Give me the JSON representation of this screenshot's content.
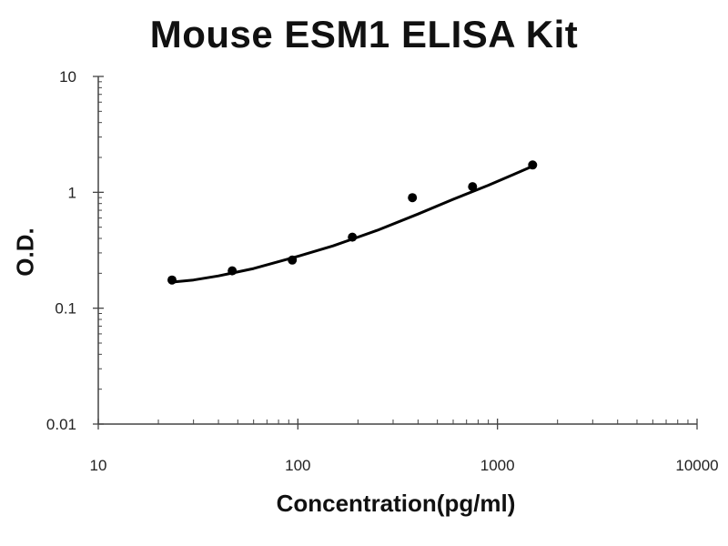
{
  "chart_data": {
    "type": "scatter",
    "title": "Mouse ESM1 ELISA Kit",
    "xlabel": "Concentration(pg/ml)",
    "ylabel": "O.D.",
    "x_scale": "log",
    "y_scale": "log",
    "xlim": [
      10,
      10000
    ],
    "ylim": [
      0.01,
      10
    ],
    "x_ticks": [
      "10",
      "100",
      "1000",
      "10000"
    ],
    "y_ticks": [
      "10",
      "1",
      "0.1",
      "0.01"
    ],
    "grid": false,
    "legend": "none",
    "series": [
      {
        "x": [
          23.4,
          46.9,
          93.8,
          187.5,
          375,
          750,
          1500
        ],
        "y": [
          0.175,
          0.21,
          0.26,
          0.41,
          0.9,
          1.12,
          1.72
        ]
      }
    ],
    "fit_curve": {
      "x": [
        23.4,
        30,
        40,
        60,
        100,
        150,
        250,
        400,
        600,
        900,
        1200,
        1500
      ],
      "y": [
        0.168,
        0.175,
        0.19,
        0.22,
        0.28,
        0.345,
        0.47,
        0.65,
        0.87,
        1.15,
        1.42,
        1.68
      ]
    },
    "colors": {
      "marker": "#000000",
      "line": "#000000",
      "axis": "#444444"
    }
  }
}
